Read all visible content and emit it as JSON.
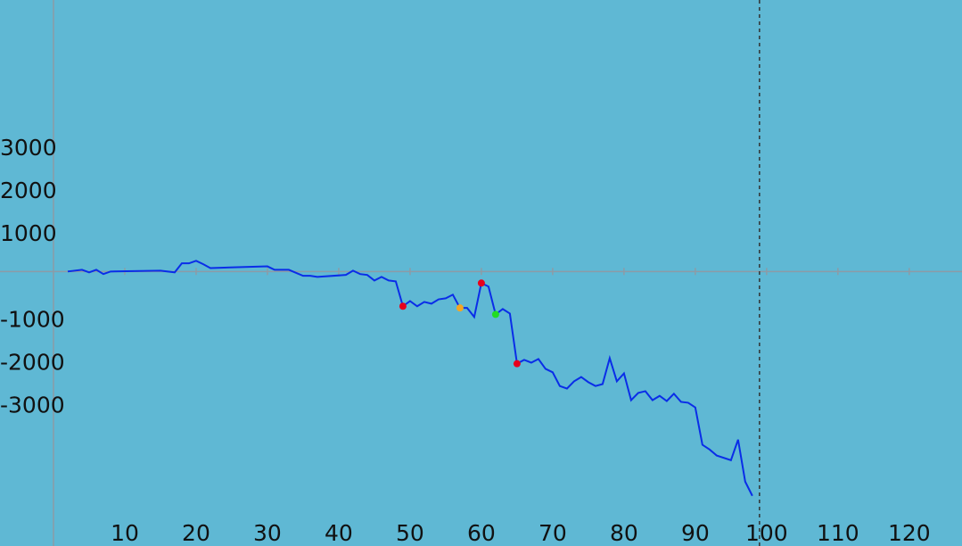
{
  "chart_data": {
    "type": "line",
    "x": [
      2,
      4,
      5,
      6,
      7,
      8,
      15,
      17,
      18,
      19,
      20,
      21,
      22,
      30,
      31,
      33,
      35,
      36,
      37,
      41,
      42,
      43,
      44,
      45,
      46,
      47,
      48,
      49,
      50,
      51,
      52,
      53,
      54,
      55,
      56,
      57,
      58,
      59,
      60,
      61,
      62,
      63,
      64,
      65,
      66,
      67,
      68,
      69,
      70,
      71,
      72,
      73,
      74,
      75,
      76,
      77,
      78,
      79,
      80,
      81,
      82,
      83,
      84,
      85,
      86,
      87,
      88,
      89,
      90,
      91,
      92,
      93,
      95,
      96,
      97,
      98
    ],
    "series": [
      {
        "color": "#0a2de8",
        "values": [
          0,
          40,
          -20,
          40,
          -60,
          0,
          20,
          -20,
          190,
          190,
          250,
          170,
          80,
          120,
          40,
          40,
          -100,
          -100,
          -125,
          -80,
          20,
          -60,
          -80,
          -210,
          -125,
          -210,
          -230,
          -810,
          -690,
          -810,
          -710,
          -750,
          -650,
          -625,
          -540,
          -850,
          -850,
          -1060,
          -270,
          -350,
          -1000,
          -875,
          -980,
          -2150,
          -2060,
          -2125,
          -2040,
          -2270,
          -2350,
          -2670,
          -2730,
          -2560,
          -2460,
          -2580,
          -2670,
          -2625,
          -2020,
          -2560,
          -2375,
          -3000,
          -2830,
          -2790,
          -3000,
          -2900,
          -3020,
          -2850,
          -3040,
          -3060,
          -3170,
          -4040,
          -4150,
          -4290,
          -4400,
          -3920,
          -4900,
          -5230
        ]
      }
    ],
    "markers": [
      {
        "x": 49,
        "y": -810,
        "color": "#e8001c"
      },
      {
        "x": 57,
        "y": -850,
        "color": "#f5a623"
      },
      {
        "x": 60,
        "y": -270,
        "color": "#e8001c"
      },
      {
        "x": 62,
        "y": -1000,
        "color": "#22dd22"
      },
      {
        "x": 65,
        "y": -2150,
        "color": "#e8001c"
      }
    ],
    "vline": 99,
    "xlim": [
      -7.5,
      127.4
    ],
    "ylim": [
      -6400,
      6330
    ],
    "xticks": [
      10,
      20,
      30,
      40,
      50,
      60,
      70,
      80,
      90,
      100,
      110,
      120
    ],
    "yticks": [
      -3000,
      -2000,
      -1000,
      1000,
      2000,
      3000
    ]
  }
}
